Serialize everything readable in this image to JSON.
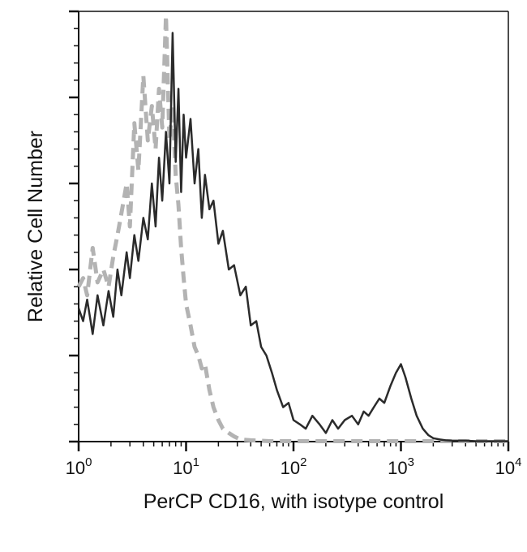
{
  "chart_data": {
    "type": "line",
    "title": "",
    "xlabel": "PerCP CD16, with isotype control",
    "ylabel": "Relative Cell Number",
    "x_scale": "log",
    "xlim": [
      1,
      10000
    ],
    "ylim": [
      0,
      100
    ],
    "grid": false,
    "legend": "none",
    "x_ticks": [
      {
        "base": "10",
        "exp": "0",
        "value": 1
      },
      {
        "base": "10",
        "exp": "1",
        "value": 10
      },
      {
        "base": "10",
        "exp": "2",
        "value": 100
      },
      {
        "base": "10",
        "exp": "3",
        "value": 1000
      },
      {
        "base": "10",
        "exp": "4",
        "value": 10000
      }
    ],
    "y_major_ticks": [
      0,
      20,
      40,
      60,
      80,
      100
    ],
    "y_minor_ticks_per_major": 4,
    "series": [
      {
        "style": "solid",
        "color": "#2b2b2b",
        "x": [
          1,
          1.1,
          1.2,
          1.35,
          1.5,
          1.7,
          1.9,
          2.1,
          2.3,
          2.5,
          2.8,
          3.0,
          3.3,
          3.6,
          4.0,
          4.4,
          4.8,
          5.2,
          5.6,
          6.0,
          6.5,
          7.0,
          7.5,
          8.0,
          8.5,
          9.0,
          9.5,
          10,
          11,
          12,
          13,
          14,
          15,
          16.5,
          18,
          20,
          22,
          25,
          28,
          32,
          36,
          40,
          45,
          50,
          56,
          63,
          70,
          80,
          90,
          100,
          115,
          130,
          150,
          175,
          200,
          230,
          260,
          300,
          350,
          400,
          450,
          500,
          560,
          630,
          700,
          800,
          900,
          1000,
          1100,
          1250,
          1400,
          1600,
          1800,
          2000,
          2300,
          2600,
          3000,
          4000,
          5000,
          7000,
          10000
        ],
        "y": [
          31,
          28,
          33,
          25,
          34,
          27,
          35,
          29,
          40,
          34,
          44,
          38,
          48,
          42,
          52,
          47,
          60,
          50,
          66,
          56,
          72,
          60,
          95,
          65,
          82,
          58,
          76,
          66,
          75,
          60,
          68,
          52,
          62,
          54,
          56,
          46,
          49,
          40,
          41,
          34,
          36,
          27,
          28,
          22,
          20,
          16,
          12,
          8,
          9,
          5,
          4,
          3,
          6,
          4,
          2,
          5,
          3,
          5,
          6,
          4,
          7,
          6,
          8,
          10,
          9,
          13,
          16,
          18,
          15,
          10,
          6,
          3,
          1.5,
          0.8,
          0.5,
          0.3,
          0.2,
          0.2,
          0.1,
          0.1,
          0.1
        ]
      },
      {
        "style": "dashed",
        "color": "#b3b3b3",
        "x": [
          1,
          1.1,
          1.2,
          1.35,
          1.5,
          1.7,
          1.9,
          2.1,
          2.3,
          2.5,
          2.8,
          3.0,
          3.3,
          3.6,
          4.0,
          4.4,
          4.8,
          5.2,
          5.6,
          6.0,
          6.5,
          7.0,
          7.5,
          8.0,
          8.5,
          9.0,
          9.5,
          10,
          11,
          12,
          13,
          14,
          15,
          16.5,
          18,
          20,
          22,
          25,
          28,
          32,
          36,
          40,
          50,
          60,
          80,
          100,
          200,
          500,
          1000,
          2000,
          5000,
          10000
        ],
        "y": [
          36,
          38,
          34,
          45,
          37,
          40,
          36,
          43,
          48,
          53,
          60,
          50,
          74,
          63,
          85,
          70,
          78,
          68,
          82,
          73,
          99,
          70,
          78,
          62,
          55,
          45,
          38,
          32,
          27,
          22,
          20,
          17,
          18,
          12,
          8,
          5,
          3,
          2,
          1.2,
          0.5,
          0.4,
          0.3,
          0.2,
          0.1,
          0.1,
          0.1,
          0.1,
          0.1,
          0.1,
          0.1,
          0.1,
          0.1
        ]
      }
    ]
  }
}
